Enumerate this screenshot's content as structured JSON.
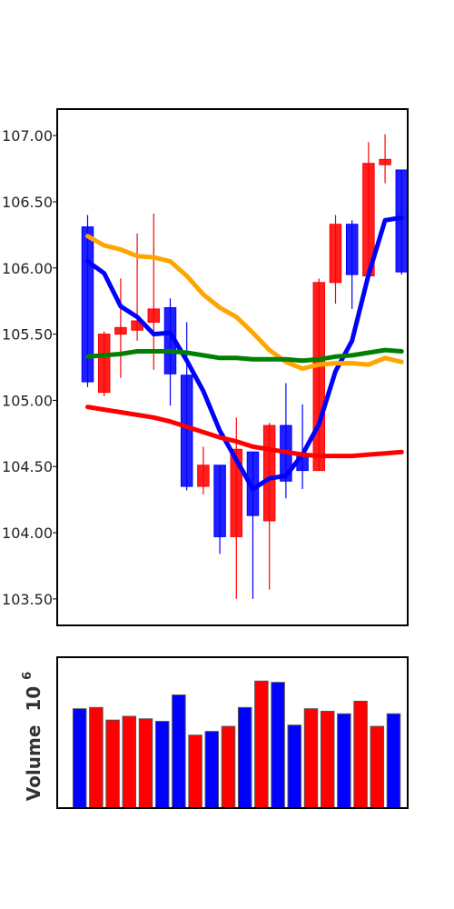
{
  "chart_data": [
    {
      "type": "candlestick",
      "ylim": [
        103.3,
        107.2
      ],
      "yticks": [
        "103.50",
        "104.00",
        "104.50",
        "105.00",
        "105.50",
        "106.00",
        "106.50",
        "107.00"
      ],
      "grid": false,
      "up_color": "#ff0000",
      "down_color": "#0000ff",
      "candles": [
        {
          "open": 106.31,
          "high": 106.4,
          "low": 105.1,
          "close": 105.14
        },
        {
          "open": 105.06,
          "high": 105.52,
          "low": 105.03,
          "close": 105.5
        },
        {
          "open": 105.5,
          "high": 105.92,
          "low": 105.17,
          "close": 105.55
        },
        {
          "open": 105.53,
          "high": 106.26,
          "low": 105.45,
          "close": 105.6
        },
        {
          "open": 105.59,
          "high": 106.41,
          "low": 105.23,
          "close": 105.69
        },
        {
          "open": 105.7,
          "high": 105.77,
          "low": 104.96,
          "close": 105.2
        },
        {
          "open": 105.19,
          "high": 105.59,
          "low": 104.32,
          "close": 104.35
        },
        {
          "open": 104.35,
          "high": 104.65,
          "low": 104.29,
          "close": 104.51
        },
        {
          "open": 104.51,
          "high": 104.51,
          "low": 103.84,
          "close": 103.97
        },
        {
          "open": 103.97,
          "high": 104.87,
          "low": 103.5,
          "close": 104.63
        },
        {
          "open": 104.61,
          "high": 104.61,
          "low": 103.5,
          "close": 104.13
        },
        {
          "open": 104.09,
          "high": 104.83,
          "low": 103.57,
          "close": 104.81
        },
        {
          "open": 104.81,
          "high": 105.13,
          "low": 104.26,
          "close": 104.39
        },
        {
          "open": 104.59,
          "high": 104.97,
          "low": 104.33,
          "close": 104.47
        },
        {
          "open": 104.47,
          "high": 105.92,
          "low": 104.47,
          "close": 105.89
        },
        {
          "open": 105.89,
          "high": 106.4,
          "low": 105.73,
          "close": 106.33
        },
        {
          "open": 106.33,
          "high": 106.36,
          "low": 105.69,
          "close": 105.95
        },
        {
          "open": 105.94,
          "high": 106.95,
          "low": 105.94,
          "close": 106.79
        },
        {
          "open": 106.78,
          "high": 107.01,
          "low": 106.64,
          "close": 106.82
        },
        {
          "open": 106.74,
          "high": 106.74,
          "low": 105.95,
          "close": 105.97
        }
      ],
      "series": [
        {
          "color": "#0000ff",
          "values": [
            106.05,
            105.96,
            105.71,
            105.63,
            105.5,
            105.51,
            105.3,
            105.07,
            104.77,
            104.55,
            104.33,
            104.41,
            104.43,
            104.59,
            104.82,
            105.22,
            105.45,
            105.95,
            106.36,
            106.38
          ]
        },
        {
          "color": "#ffa500",
          "values": [
            106.24,
            106.17,
            106.14,
            106.09,
            106.08,
            106.05,
            105.94,
            105.8,
            105.7,
            105.63,
            105.51,
            105.38,
            105.29,
            105.24,
            105.27,
            105.28,
            105.28,
            105.27,
            105.32,
            105.29
          ]
        },
        {
          "color": "#008000",
          "values": [
            105.33,
            105.34,
            105.35,
            105.37,
            105.37,
            105.37,
            105.36,
            105.34,
            105.32,
            105.32,
            105.31,
            105.31,
            105.31,
            105.3,
            105.31,
            105.33,
            105.34,
            105.36,
            105.38,
            105.37
          ]
        },
        {
          "color": "#ff0000",
          "values": [
            104.95,
            104.93,
            104.91,
            104.89,
            104.87,
            104.84,
            104.8,
            104.76,
            104.72,
            104.69,
            104.65,
            104.63,
            104.61,
            104.59,
            104.58,
            104.58,
            104.58,
            104.59,
            104.6,
            104.61
          ]
        }
      ]
    },
    {
      "type": "bar",
      "ylabel": "Volume",
      "ylabel_exponent": "10",
      "ylabel_exponent_power": "6",
      "ylim": [
        0,
        1.2
      ],
      "values": [
        0.79,
        0.8,
        0.7,
        0.73,
        0.71,
        0.69,
        0.9,
        0.58,
        0.61,
        0.65,
        0.8,
        1.01,
        1.0,
        0.66,
        0.79,
        0.77,
        0.75,
        0.85,
        0.65,
        0.75
      ],
      "colors": [
        "#0000ff",
        "#ff0000",
        "#ff0000",
        "#ff0000",
        "#ff0000",
        "#0000ff",
        "#0000ff",
        "#ff0000",
        "#0000ff",
        "#ff0000",
        "#0000ff",
        "#ff0000",
        "#0000ff",
        "#0000ff",
        "#ff0000",
        "#ff0000",
        "#0000ff",
        "#ff0000",
        "#ff0000",
        "#0000ff"
      ]
    }
  ]
}
